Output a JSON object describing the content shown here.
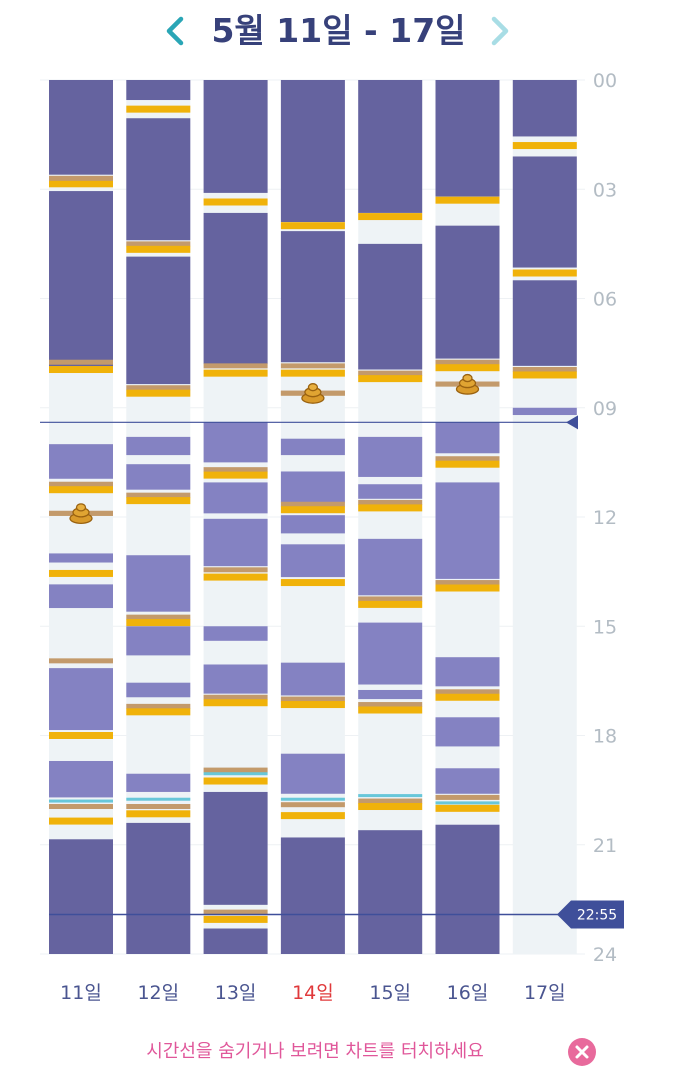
{
  "header": {
    "title": "5월 11일 - 17일",
    "prev_icon": "chevron-left-icon",
    "next_icon": "chevron-right-icon"
  },
  "colors": {
    "title": "#37417a",
    "nav_prev": "#2aa6b6",
    "nav_next": "#a8dde5",
    "night_sleep": "#65639f",
    "nap": "#8482c2",
    "awake": "#eef3f6",
    "feeding": "#f0b20a",
    "diaper": "#c39a6b",
    "medicine": "#68c7d9",
    "time_line": "#3f4f9a",
    "day_label": "#4a5590",
    "today_label": "#e0393b",
    "hour_label": "#b3bcc4",
    "footer": "#e0579a",
    "close": "#e86a9c"
  },
  "chart_data": {
    "type": "timeline",
    "hour_ticks": [
      "00",
      "03",
      "06",
      "09",
      "12",
      "15",
      "18",
      "21",
      "24"
    ],
    "time_marker": 22.917,
    "time_marker_label": "22:55",
    "extra_line": 9.4,
    "highlight_day_index": 3,
    "days": [
      {
        "label": "11일",
        "segments": [
          {
            "type": "sleep",
            "start": 0,
            "end": 2.6
          },
          {
            "type": "sleep",
            "start": 3.05,
            "end": 7.9
          },
          {
            "type": "nap",
            "start": 10.0,
            "end": 10.95
          },
          {
            "type": "nap",
            "start": 13.0,
            "end": 13.25
          },
          {
            "type": "nap",
            "start": 13.85,
            "end": 14.5
          },
          {
            "type": "nap",
            "start": 16.15,
            "end": 17.85
          },
          {
            "type": "nap",
            "start": 18.7,
            "end": 19.7
          },
          {
            "type": "sleep",
            "start": 20.85,
            "end": 24
          }
        ],
        "marks": [
          {
            "type": "feeding",
            "at": 2.85
          },
          {
            "type": "diaper",
            "at": 2.7
          },
          {
            "type": "diaper",
            "at": 7.75
          },
          {
            "type": "feeding",
            "at": 7.95
          },
          {
            "type": "diaper",
            "at": 11.1
          },
          {
            "type": "feeding",
            "at": 11.25
          },
          {
            "type": "diaper",
            "at": 11.9
          },
          {
            "type": "feeding",
            "at": 13.55
          },
          {
            "type": "diaper",
            "at": 15.95
          },
          {
            "type": "feeding",
            "at": 18.0
          },
          {
            "type": "medicine",
            "at": 19.8
          },
          {
            "type": "diaper",
            "at": 19.95
          },
          {
            "type": "feeding",
            "at": 20.35
          }
        ],
        "poop": [
          11.9
        ]
      },
      {
        "label": "12일",
        "segments": [
          {
            "type": "sleep",
            "start": 0,
            "end": 0.55
          },
          {
            "type": "sleep",
            "start": 1.05,
            "end": 4.4
          },
          {
            "type": "sleep",
            "start": 4.85,
            "end": 8.35
          },
          {
            "type": "nap",
            "start": 9.8,
            "end": 10.3
          },
          {
            "type": "nap",
            "start": 10.55,
            "end": 11.25
          },
          {
            "type": "nap",
            "start": 13.05,
            "end": 14.6
          },
          {
            "type": "nap",
            "start": 15.0,
            "end": 15.8
          },
          {
            "type": "nap",
            "start": 16.55,
            "end": 16.95
          },
          {
            "type": "nap",
            "start": 19.05,
            "end": 19.55
          },
          {
            "type": "sleep",
            "start": 20.4,
            "end": 24
          }
        ],
        "marks": [
          {
            "type": "feeding",
            "at": 0.8
          },
          {
            "type": "diaper",
            "at": 4.5
          },
          {
            "type": "feeding",
            "at": 4.65
          },
          {
            "type": "diaper",
            "at": 8.45
          },
          {
            "type": "feeding",
            "at": 8.6
          },
          {
            "type": "diaper",
            "at": 11.4
          },
          {
            "type": "feeding",
            "at": 11.55
          },
          {
            "type": "diaper",
            "at": 14.75
          },
          {
            "type": "feeding",
            "at": 14.9
          },
          {
            "type": "diaper",
            "at": 17.2
          },
          {
            "type": "feeding",
            "at": 17.35
          },
          {
            "type": "medicine",
            "at": 19.75
          },
          {
            "type": "diaper",
            "at": 19.95
          },
          {
            "type": "feeding",
            "at": 20.15
          }
        ],
        "poop": []
      },
      {
        "label": "13일",
        "segments": [
          {
            "type": "sleep",
            "start": 0,
            "end": 3.1
          },
          {
            "type": "sleep",
            "start": 3.65,
            "end": 7.8
          },
          {
            "type": "nap",
            "start": 9.4,
            "end": 10.5
          },
          {
            "type": "nap",
            "start": 11.05,
            "end": 11.9
          },
          {
            "type": "nap",
            "start": 12.05,
            "end": 13.35
          },
          {
            "type": "nap",
            "start": 15.0,
            "end": 15.4
          },
          {
            "type": "nap",
            "start": 16.05,
            "end": 16.85
          },
          {
            "type": "sleep",
            "start": 19.55,
            "end": 22.65
          },
          {
            "type": "sleep",
            "start": 23.3,
            "end": 24
          }
        ],
        "marks": [
          {
            "type": "feeding",
            "at": 3.35
          },
          {
            "type": "diaper",
            "at": 7.85
          },
          {
            "type": "feeding",
            "at": 8.05
          },
          {
            "type": "diaper",
            "at": 10.7
          },
          {
            "type": "feeding",
            "at": 10.85
          },
          {
            "type": "diaper",
            "at": 13.45
          },
          {
            "type": "feeding",
            "at": 13.65
          },
          {
            "type": "diaper",
            "at": 16.95
          },
          {
            "type": "feeding",
            "at": 17.1
          },
          {
            "type": "diaper",
            "at": 18.95
          },
          {
            "type": "medicine",
            "at": 19.05
          },
          {
            "type": "feeding",
            "at": 19.25
          },
          {
            "type": "diaper",
            "at": 22.85
          },
          {
            "type": "feeding",
            "at": 23.05
          }
        ],
        "poop": []
      },
      {
        "label": "14일",
        "segments": [
          {
            "type": "sleep",
            "start": 0,
            "end": 3.9
          },
          {
            "type": "sleep",
            "start": 4.15,
            "end": 7.75
          },
          {
            "type": "nap",
            "start": 9.85,
            "end": 10.3
          },
          {
            "type": "nap",
            "start": 10.75,
            "end": 11.6
          },
          {
            "type": "nap",
            "start": 11.95,
            "end": 12.45
          },
          {
            "type": "nap",
            "start": 12.75,
            "end": 13.65
          },
          {
            "type": "nap",
            "start": 16.0,
            "end": 16.9
          },
          {
            "type": "nap",
            "start": 18.5,
            "end": 19.6
          },
          {
            "type": "sleep",
            "start": 20.8,
            "end": 24
          }
        ],
        "marks": [
          {
            "type": "feeding",
            "at": 4.0
          },
          {
            "type": "diaper",
            "at": 7.85
          },
          {
            "type": "feeding",
            "at": 8.05
          },
          {
            "type": "diaper",
            "at": 8.6
          },
          {
            "type": "diaper",
            "at": 11.65
          },
          {
            "type": "feeding",
            "at": 11.8
          },
          {
            "type": "feeding",
            "at": 13.8
          },
          {
            "type": "diaper",
            "at": 17.0
          },
          {
            "type": "feeding",
            "at": 17.15
          },
          {
            "type": "medicine",
            "at": 19.75
          },
          {
            "type": "diaper",
            "at": 19.9
          },
          {
            "type": "feeding",
            "at": 20.2
          }
        ],
        "poop": [
          8.6
        ]
      },
      {
        "label": "15일",
        "segments": [
          {
            "type": "sleep",
            "start": 0,
            "end": 3.65
          },
          {
            "type": "sleep",
            "start": 4.5,
            "end": 7.95
          },
          {
            "type": "nap",
            "start": 9.8,
            "end": 10.9
          },
          {
            "type": "nap",
            "start": 11.1,
            "end": 11.5
          },
          {
            "type": "nap",
            "start": 12.6,
            "end": 14.15
          },
          {
            "type": "nap",
            "start": 14.9,
            "end": 16.6
          },
          {
            "type": "nap",
            "start": 16.75,
            "end": 17.0
          },
          {
            "type": "sleep",
            "start": 20.6,
            "end": 24
          }
        ],
        "marks": [
          {
            "type": "feeding",
            "at": 3.75
          },
          {
            "type": "diaper",
            "at": 8.05
          },
          {
            "type": "feeding",
            "at": 8.2
          },
          {
            "type": "diaper",
            "at": 11.6
          },
          {
            "type": "feeding",
            "at": 11.75
          },
          {
            "type": "diaper",
            "at": 14.25
          },
          {
            "type": "feeding",
            "at": 14.4
          },
          {
            "type": "diaper",
            "at": 17.15
          },
          {
            "type": "feeding",
            "at": 17.3
          },
          {
            "type": "medicine",
            "at": 19.65
          },
          {
            "type": "diaper",
            "at": 19.8
          },
          {
            "type": "feeding",
            "at": 19.95
          }
        ],
        "poop": []
      },
      {
        "label": "16일",
        "segments": [
          {
            "type": "sleep",
            "start": 0,
            "end": 3.2
          },
          {
            "type": "sleep",
            "start": 4.0,
            "end": 7.65
          },
          {
            "type": "nap",
            "start": 9.4,
            "end": 10.25
          },
          {
            "type": "nap",
            "start": 11.05,
            "end": 13.7
          },
          {
            "type": "nap",
            "start": 15.85,
            "end": 16.65
          },
          {
            "type": "nap",
            "start": 17.5,
            "end": 18.3
          },
          {
            "type": "nap",
            "start": 18.9,
            "end": 19.6
          },
          {
            "type": "sleep",
            "start": 20.45,
            "end": 24
          }
        ],
        "marks": [
          {
            "type": "feeding",
            "at": 3.3
          },
          {
            "type": "diaper",
            "at": 7.75
          },
          {
            "type": "feeding",
            "at": 7.9
          },
          {
            "type": "diaper",
            "at": 8.35
          },
          {
            "type": "diaper",
            "at": 10.4
          },
          {
            "type": "feeding",
            "at": 10.55
          },
          {
            "type": "diaper",
            "at": 13.8
          },
          {
            "type": "feeding",
            "at": 13.95
          },
          {
            "type": "diaper",
            "at": 16.8
          },
          {
            "type": "feeding",
            "at": 16.95
          },
          {
            "type": "diaper",
            "at": 19.7
          },
          {
            "type": "medicine",
            "at": 19.85
          },
          {
            "type": "feeding",
            "at": 20.0
          }
        ],
        "poop": [
          8.35
        ]
      },
      {
        "label": "17일",
        "segments": [
          {
            "type": "sleep",
            "start": 0,
            "end": 1.55
          },
          {
            "type": "sleep",
            "start": 2.1,
            "end": 5.15
          },
          {
            "type": "sleep",
            "start": 5.5,
            "end": 7.85
          },
          {
            "type": "nap",
            "start": 9.0,
            "end": 9.2
          }
        ],
        "marks": [
          {
            "type": "feeding",
            "at": 1.8
          },
          {
            "type": "feeding",
            "at": 5.3
          },
          {
            "type": "diaper",
            "at": 7.95
          },
          {
            "type": "feeding",
            "at": 8.1
          }
        ],
        "poop": [],
        "empty_after": 9.2
      }
    ]
  },
  "footer": {
    "message": "시간선을 숨기거나 보려면 차트를 터치하세요",
    "close_icon": "close-icon"
  }
}
